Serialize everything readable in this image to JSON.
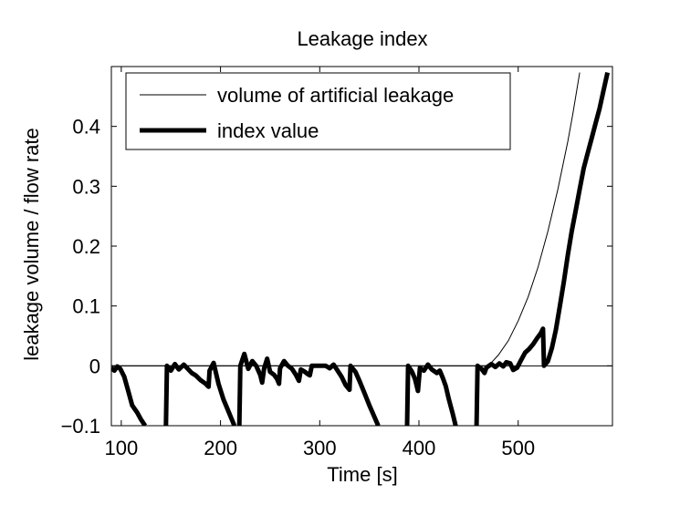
{
  "chart_data": {
    "type": "line",
    "title": "Leakage index",
    "xlabel": "Time [s]",
    "ylabel": "leakage volume / flow rate",
    "xlim": [
      90,
      595
    ],
    "ylim": [
      -0.1,
      0.5
    ],
    "xticks": [
      100,
      200,
      300,
      400,
      500
    ],
    "yticks": [
      -0.1,
      0,
      0.1,
      0.2,
      0.3,
      0.4
    ],
    "xtick_labels": [
      "100",
      "200",
      "300",
      "400",
      "500"
    ],
    "ytick_labels": [
      "−0.1",
      "0",
      "0.1",
      "0.2",
      "0.3",
      "0.4"
    ],
    "grid": false,
    "legend_position": "top-left",
    "series": [
      {
        "name": "volume of artificial leakage",
        "style": "thin",
        "color": "#000000",
        "points": [
          [
            90,
            0
          ],
          [
            470,
            0
          ],
          [
            480,
            0.018
          ],
          [
            490,
            0.042
          ],
          [
            500,
            0.075
          ],
          [
            510,
            0.115
          ],
          [
            520,
            0.165
          ],
          [
            530,
            0.225
          ],
          [
            540,
            0.295
          ],
          [
            550,
            0.375
          ],
          [
            555,
            0.42
          ],
          [
            562,
            0.49
          ]
        ]
      },
      {
        "name": "index value",
        "style": "thick",
        "color": "#000000",
        "segments": [
          [
            [
              90,
              -0.003
            ],
            [
              93,
              -0.008
            ],
            [
              96,
              -0.001
            ],
            [
              99,
              -0.005
            ],
            [
              103,
              -0.018
            ],
            [
              107,
              -0.042
            ],
            [
              111,
              -0.066
            ],
            [
              116,
              -0.078
            ],
            [
              120,
              -0.09
            ],
            [
              124,
              -0.1
            ]
          ],
          [
            [
              145,
              -0.1
            ],
            [
              146,
              0.0
            ],
            [
              150,
              -0.008
            ],
            [
              154,
              0.003
            ],
            [
              158,
              -0.006
            ],
            [
              163,
              0.002
            ],
            [
              167,
              -0.005
            ],
            [
              171,
              -0.012
            ],
            [
              175,
              -0.016
            ],
            [
              180,
              -0.024
            ],
            [
              185,
              -0.03
            ],
            [
              188,
              -0.035
            ],
            [
              189,
              -0.008
            ],
            [
              193,
              0.005
            ],
            [
              198,
              -0.03
            ],
            [
              203,
              -0.056
            ],
            [
              207,
              -0.072
            ],
            [
              211,
              -0.088
            ],
            [
              214,
              -0.1
            ]
          ],
          [
            [
              219,
              -0.1
            ],
            [
              220,
              0.0
            ],
            [
              224,
              0.02
            ],
            [
              228,
              -0.005
            ],
            [
              232,
              0.008
            ],
            [
              236,
              0.0
            ],
            [
              240,
              -0.015
            ],
            [
              242,
              -0.028
            ],
            [
              244,
              -0.004
            ],
            [
              247,
              0.012
            ],
            [
              250,
              -0.01
            ],
            [
              254,
              -0.015
            ],
            [
              257,
              -0.022
            ],
            [
              259,
              -0.03
            ],
            [
              260,
              -0.004
            ],
            [
              264,
              0.008
            ],
            [
              268,
              0.0
            ],
            [
              272,
              -0.005
            ],
            [
              276,
              -0.015
            ],
            [
              279,
              -0.025
            ],
            [
              281,
              -0.006
            ],
            [
              285,
              -0.01
            ],
            [
              288,
              -0.014
            ],
            [
              290,
              -0.016
            ],
            [
              292,
              0.0
            ],
            [
              300,
              0.0
            ],
            [
              306,
              0.0
            ],
            [
              310,
              -0.004
            ],
            [
              314,
              0.002
            ],
            [
              318,
              -0.008
            ],
            [
              322,
              -0.018
            ],
            [
              326,
              -0.032
            ],
            [
              330,
              -0.04
            ],
            [
              331,
              0.0
            ],
            [
              336,
              -0.01
            ],
            [
              340,
              -0.025
            ],
            [
              345,
              -0.045
            ],
            [
              350,
              -0.066
            ],
            [
              355,
              -0.085
            ],
            [
              359,
              -0.1
            ]
          ],
          [
            [
              388,
              -0.1
            ],
            [
              389,
              0.0
            ],
            [
              393,
              -0.01
            ],
            [
              396,
              -0.022
            ],
            [
              399,
              -0.042
            ],
            [
              401,
              -0.003
            ],
            [
              405,
              -0.008
            ],
            [
              409,
              0.002
            ],
            [
              413,
              -0.006
            ],
            [
              418,
              -0.012
            ],
            [
              421,
              -0.008
            ],
            [
              424,
              -0.02
            ],
            [
              427,
              -0.034
            ],
            [
              430,
              -0.055
            ],
            [
              434,
              -0.08
            ],
            [
              437,
              -0.1
            ]
          ],
          [
            [
              458,
              -0.1
            ],
            [
              459,
              0.0
            ],
            [
              463,
              -0.005
            ],
            [
              466,
              -0.012
            ],
            [
              468,
              -0.003
            ],
            [
              473,
              0.003
            ],
            [
              477,
              -0.002
            ],
            [
              481,
              0.004
            ],
            [
              485,
              -0.001
            ],
            [
              488,
              0.006
            ],
            [
              492,
              0.004
            ],
            [
              495,
              -0.007
            ],
            [
              499,
              -0.003
            ],
            [
              503,
              0.01
            ],
            [
              507,
              0.022
            ],
            [
              511,
              0.028
            ],
            [
              515,
              0.036
            ],
            [
              519,
              0.046
            ],
            [
              523,
              0.055
            ],
            [
              525,
              0.062
            ],
            [
              526,
              0.0
            ],
            [
              530,
              0.008
            ],
            [
              534,
              0.03
            ],
            [
              538,
              0.06
            ],
            [
              542,
              0.1
            ],
            [
              546,
              0.14
            ],
            [
              550,
              0.185
            ],
            [
              554,
              0.225
            ],
            [
              558,
              0.26
            ],
            [
              562,
              0.295
            ],
            [
              566,
              0.33
            ],
            [
              570,
              0.355
            ],
            [
              574,
              0.38
            ],
            [
              578,
              0.405
            ],
            [
              582,
              0.43
            ],
            [
              586,
              0.46
            ],
            [
              590,
              0.49
            ]
          ]
        ]
      }
    ]
  }
}
